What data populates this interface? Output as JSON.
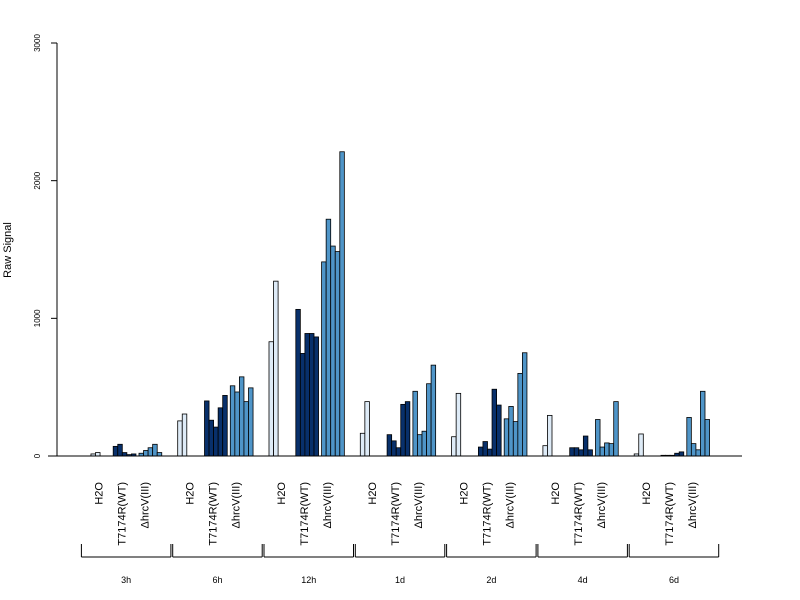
{
  "chart_data": {
    "type": "bar",
    "ylabel": "Raw Signal",
    "ylim": [
      0,
      3000
    ],
    "yticks": [
      "0",
      "1000",
      "2000",
      "3000"
    ],
    "grid": false,
    "legend": "none",
    "conditions": [
      "H2O",
      "T7174R(WT)",
      "ΔhrcV(III)"
    ],
    "condition_colors": [
      "#deebf7",
      "#08306b",
      "#4f95c8"
    ],
    "timepoints": [
      {
        "label": "3h",
        "groups": [
          {
            "condition": "H2O",
            "values": [
              0,
              15,
              25
            ]
          },
          {
            "condition": "T7174R(WT)",
            "values": [
              70,
              85,
              25,
              10,
              15
            ]
          },
          {
            "condition": "ΔhrcV(III)",
            "values": [
              20,
              40,
              60,
              85,
              25
            ]
          }
        ]
      },
      {
        "label": "6h",
        "groups": [
          {
            "condition": "H2O",
            "values": [
              255,
              305
            ]
          },
          {
            "condition": "T7174R(WT)",
            "values": [
              400,
              260,
              210,
              350,
              440
            ]
          },
          {
            "condition": "ΔhrcV(III)",
            "values": [
              510,
              465,
              575,
              395,
              495
            ]
          }
        ]
      },
      {
        "label": "12h",
        "groups": [
          {
            "condition": "H2O",
            "values": [
              830,
              1270
            ]
          },
          {
            "condition": "T7174R(WT)",
            "values": [
              1065,
              745,
              890,
              890,
              865
            ]
          },
          {
            "condition": "ΔhrcV(III)",
            "values": [
              1410,
              1720,
              1525,
              1485,
              2210
            ]
          }
        ]
      },
      {
        "label": "1d",
        "groups": [
          {
            "condition": "H2O",
            "values": [
              165,
              395
            ]
          },
          {
            "condition": "T7174R(WT)",
            "values": [
              155,
              110,
              60,
              375,
              395
            ]
          },
          {
            "condition": "ΔhrcV(III)",
            "values": [
              470,
              155,
              180,
              525,
              660
            ]
          }
        ]
      },
      {
        "label": "2d",
        "groups": [
          {
            "condition": "H2O",
            "values": [
              140,
              455
            ]
          },
          {
            "condition": "T7174R(WT)",
            "values": [
              65,
              105,
              50,
              485,
              370
            ]
          },
          {
            "condition": "ΔhrcV(III)",
            "values": [
              270,
              360,
              250,
              600,
              750
            ]
          }
        ]
      },
      {
        "label": "4d",
        "groups": [
          {
            "condition": "H2O",
            "values": [
              75,
              295
            ]
          },
          {
            "condition": "T7174R(WT)",
            "values": [
              60,
              60,
              45,
              145,
              45
            ]
          },
          {
            "condition": "ΔhrcV(III)",
            "values": [
              265,
              65,
              95,
              90,
              395
            ]
          }
        ]
      },
      {
        "label": "6d",
        "groups": [
          {
            "condition": "H2O",
            "values": [
              15,
              160
            ]
          },
          {
            "condition": "T7174R(WT)",
            "values": [
              5,
              5,
              5,
              20,
              30
            ]
          },
          {
            "condition": "ΔhrcV(III)",
            "values": [
              280,
              90,
              45,
              470,
              265
            ]
          }
        ]
      }
    ]
  }
}
